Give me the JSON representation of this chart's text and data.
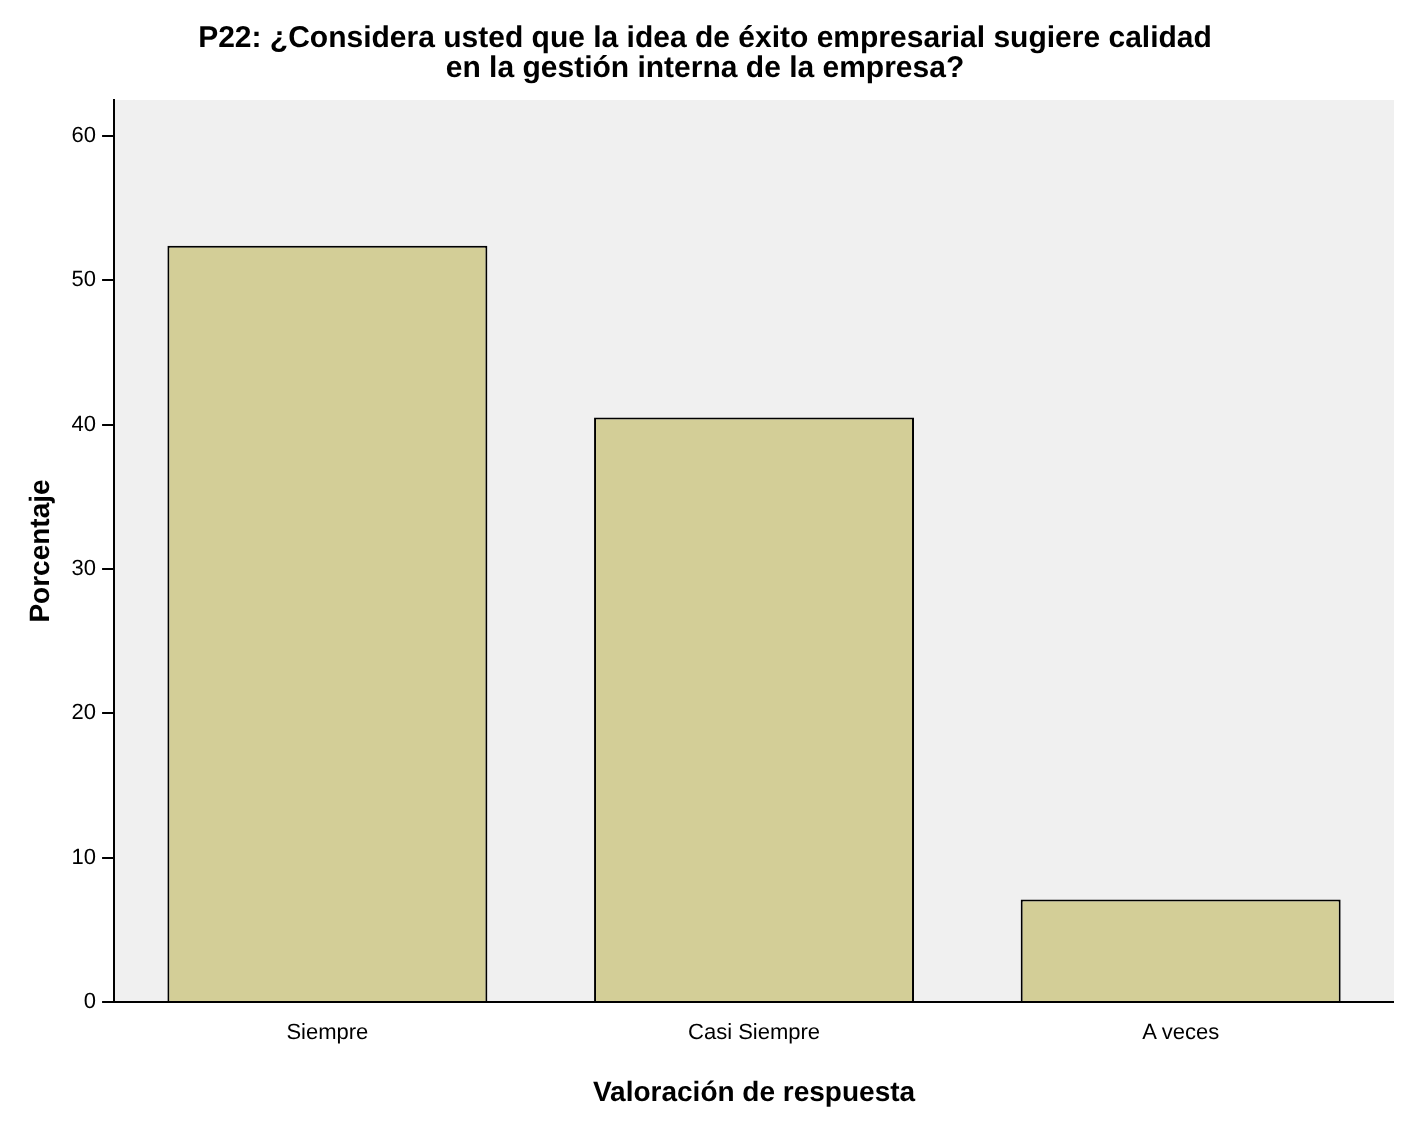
{
  "chart_data": {
    "type": "bar",
    "title": "P22: ¿Considera usted que la idea de éxito empresarial sugiere calidad en la gestión interna de la empresa?",
    "xlabel": "Valoración de respuesta",
    "ylabel": "Porcentaje",
    "categories": [
      "Siempre",
      "Casi Siempre",
      "A veces"
    ],
    "values": [
      52.4,
      40.5,
      7.1
    ],
    "color": "#d3ce97",
    "ylim": [
      0,
      62.5
    ],
    "yticks": [
      0,
      10,
      20,
      30,
      40,
      50,
      60
    ],
    "grid": false,
    "legend": false
  }
}
